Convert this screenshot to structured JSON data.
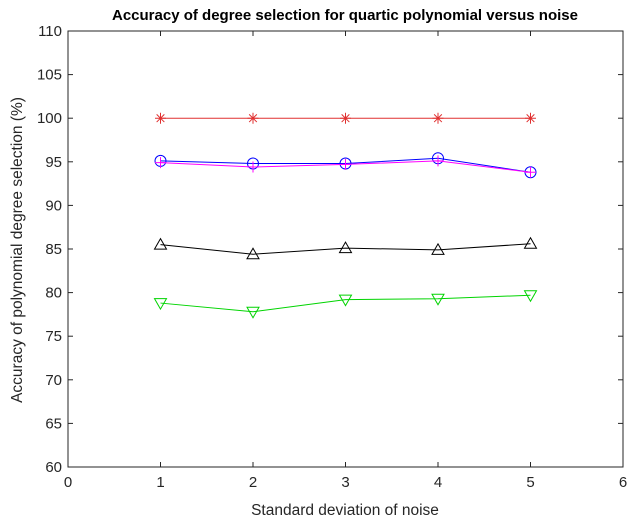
{
  "chart_data": {
    "type": "line",
    "title": "Accuracy of degree selection for quartic polynomial versus noise",
    "xlabel": "Standard deviation of noise",
    "ylabel": "Accuracy of polynomial degree selection (%)",
    "xlim": [
      0,
      6
    ],
    "ylim": [
      60,
      110
    ],
    "xticks": [
      0,
      1,
      2,
      3,
      4,
      5,
      6
    ],
    "yticks": [
      60,
      65,
      70,
      75,
      80,
      85,
      90,
      95,
      100,
      105,
      110
    ],
    "grid": false,
    "legend": "none",
    "x": [
      1,
      2,
      3,
      4,
      5
    ],
    "series": [
      {
        "color": "#e03030",
        "marker": "asterisk",
        "values": [
          100,
          100,
          100,
          100,
          100
        ]
      },
      {
        "color": "#0000ff",
        "marker": "circle",
        "values": [
          95.1,
          94.8,
          94.8,
          95.4,
          93.8
        ]
      },
      {
        "color": "#ff00ff",
        "marker": "plus",
        "values": [
          94.9,
          94.4,
          94.7,
          95.1,
          93.8
        ]
      },
      {
        "color": "#000000",
        "marker": "triangle-up",
        "values": [
          85.5,
          84.4,
          85.1,
          84.9,
          85.6
        ]
      },
      {
        "color": "#00d400",
        "marker": "triangle-down",
        "values": [
          78.8,
          77.8,
          79.2,
          79.3,
          79.7
        ]
      }
    ]
  }
}
